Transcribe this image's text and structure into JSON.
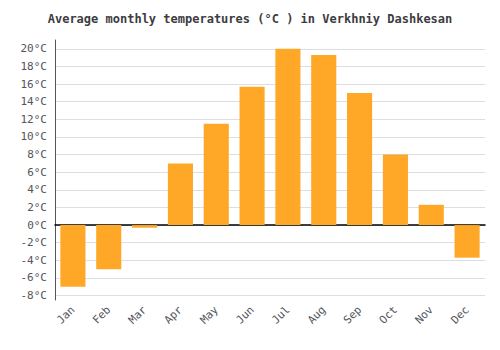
{
  "chart_data": {
    "type": "bar",
    "title": "Average monthly temperatures (°C ) in Verkhniy Dashkesan",
    "categories": [
      "Jan",
      "Feb",
      "Mar",
      "Apr",
      "May",
      "Jun",
      "Jul",
      "Aug",
      "Sep",
      "Oct",
      "Nov",
      "Dec"
    ],
    "values": [
      -7,
      -5,
      -0.3,
      7,
      11.5,
      15.7,
      20,
      19.3,
      15,
      8,
      2.3,
      -3.7
    ],
    "color": "#FFA726",
    "ylim": [
      -8.5,
      21
    ],
    "yticks": [
      {
        "value": -8,
        "label": "-8°C"
      },
      {
        "value": -6,
        "label": "-6°C"
      },
      {
        "value": -4,
        "label": "-4°C"
      },
      {
        "value": -2,
        "label": "-2°C"
      },
      {
        "value": 0,
        "label": "0°C"
      },
      {
        "value": 2,
        "label": "2°C"
      },
      {
        "value": 4,
        "label": "4°C"
      },
      {
        "value": 6,
        "label": "6°C"
      },
      {
        "value": 8,
        "label": "8°C"
      },
      {
        "value": 10,
        "label": "10°C"
      },
      {
        "value": 12,
        "label": "12°C"
      },
      {
        "value": 14,
        "label": "14°C"
      },
      {
        "value": 16,
        "label": "16°C"
      },
      {
        "value": 18,
        "label": "18°C"
      },
      {
        "value": 20,
        "label": "20°C"
      }
    ],
    "grid": true
  }
}
